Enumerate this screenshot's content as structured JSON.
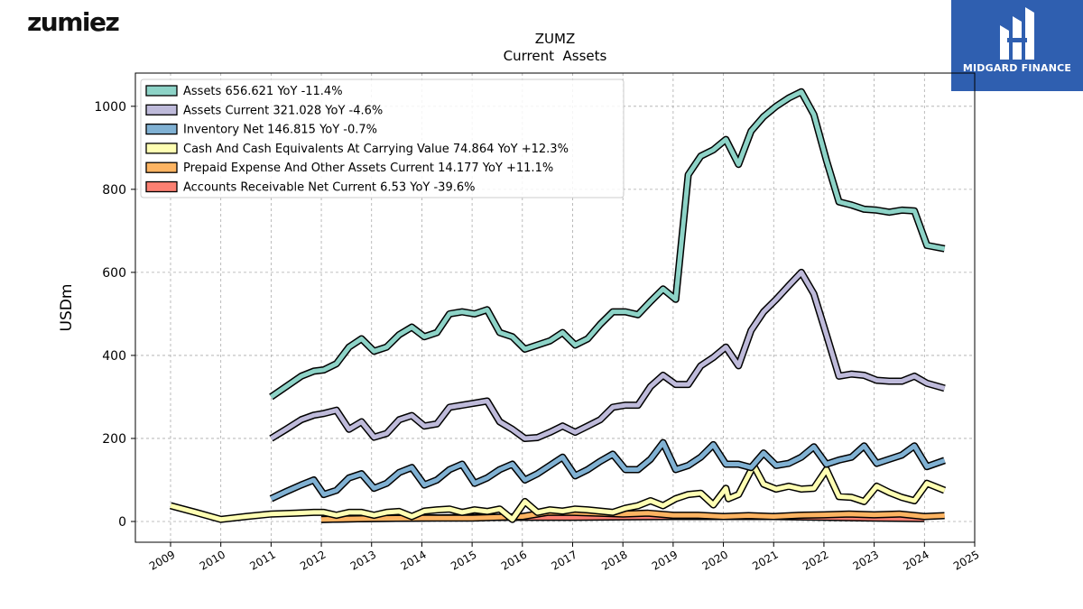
{
  "brand": {
    "name": "zumiez",
    "badge_text": "MIDGARD FINANCE"
  },
  "chart_data": {
    "type": "line",
    "title": "ZUMZ",
    "subtitle": "Current  Assets",
    "xlabel": "",
    "ylabel": "USDm",
    "xlim": [
      2008.3,
      2025.0
    ],
    "ylim": [
      -50,
      1080
    ],
    "grid": true,
    "legend_position": "top-left",
    "x_ticks": [
      "2009",
      "2010",
      "2011",
      "2012",
      "2013",
      "2014",
      "2015",
      "2016",
      "2017",
      "2018",
      "2019",
      "2020",
      "2021",
      "2022",
      "2023",
      "2024",
      "2025"
    ],
    "y_ticks": [
      "0",
      "200",
      "400",
      "600",
      "800",
      "1000"
    ],
    "series": [
      {
        "name": "Assets",
        "legend_label": "Assets  656.621 YoY -11.4%",
        "color": "#8dd3c7",
        "points": [
          [
            2011.0,
            300
          ],
          [
            2011.3,
            325
          ],
          [
            2011.6,
            350
          ],
          [
            2011.85,
            362
          ],
          [
            2012.05,
            365
          ],
          [
            2012.3,
            380
          ],
          [
            2012.55,
            420
          ],
          [
            2012.8,
            440
          ],
          [
            2013.05,
            410
          ],
          [
            2013.3,
            420
          ],
          [
            2013.55,
            450
          ],
          [
            2013.8,
            468
          ],
          [
            2014.05,
            445
          ],
          [
            2014.3,
            455
          ],
          [
            2014.55,
            500
          ],
          [
            2014.8,
            505
          ],
          [
            2015.05,
            500
          ],
          [
            2015.3,
            510
          ],
          [
            2015.55,
            455
          ],
          [
            2015.8,
            445
          ],
          [
            2016.05,
            415
          ],
          [
            2016.3,
            425
          ],
          [
            2016.55,
            435
          ],
          [
            2016.8,
            455
          ],
          [
            2017.05,
            425
          ],
          [
            2017.3,
            440
          ],
          [
            2017.55,
            475
          ],
          [
            2017.8,
            505
          ],
          [
            2018.05,
            505
          ],
          [
            2018.3,
            498
          ],
          [
            2018.55,
            530
          ],
          [
            2018.8,
            560
          ],
          [
            2019.05,
            535
          ],
          [
            2019.3,
            835
          ],
          [
            2019.55,
            880
          ],
          [
            2019.8,
            895
          ],
          [
            2020.05,
            920
          ],
          [
            2020.3,
            860
          ],
          [
            2020.55,
            940
          ],
          [
            2020.8,
            975
          ],
          [
            2021.05,
            1000
          ],
          [
            2021.3,
            1020
          ],
          [
            2021.55,
            1035
          ],
          [
            2021.8,
            980
          ],
          [
            2022.05,
            870
          ],
          [
            2022.3,
            770
          ],
          [
            2022.55,
            762
          ],
          [
            2022.8,
            752
          ],
          [
            2023.05,
            750
          ],
          [
            2023.3,
            745
          ],
          [
            2023.55,
            750
          ],
          [
            2023.8,
            748
          ],
          [
            2024.05,
            665
          ],
          [
            2024.4,
            657
          ]
        ]
      },
      {
        "name": "Assets Current",
        "legend_label": "Assets Current  321.028 YoY -4.6%",
        "color": "#bebada",
        "points": [
          [
            2011.0,
            200
          ],
          [
            2011.3,
            222
          ],
          [
            2011.6,
            245
          ],
          [
            2011.85,
            256
          ],
          [
            2012.05,
            260
          ],
          [
            2012.3,
            268
          ],
          [
            2012.55,
            222
          ],
          [
            2012.8,
            240
          ],
          [
            2013.05,
            203
          ],
          [
            2013.3,
            212
          ],
          [
            2013.55,
            245
          ],
          [
            2013.8,
            255
          ],
          [
            2014.05,
            230
          ],
          [
            2014.3,
            235
          ],
          [
            2014.55,
            275
          ],
          [
            2014.8,
            280
          ],
          [
            2015.05,
            285
          ],
          [
            2015.3,
            290
          ],
          [
            2015.55,
            240
          ],
          [
            2015.8,
            222
          ],
          [
            2016.05,
            200
          ],
          [
            2016.3,
            202
          ],
          [
            2016.55,
            215
          ],
          [
            2016.8,
            230
          ],
          [
            2017.05,
            215
          ],
          [
            2017.3,
            230
          ],
          [
            2017.55,
            245
          ],
          [
            2017.8,
            275
          ],
          [
            2018.05,
            280
          ],
          [
            2018.3,
            280
          ],
          [
            2018.55,
            325
          ],
          [
            2018.8,
            352
          ],
          [
            2019.05,
            330
          ],
          [
            2019.3,
            330
          ],
          [
            2019.55,
            375
          ],
          [
            2019.8,
            395
          ],
          [
            2020.05,
            420
          ],
          [
            2020.3,
            375
          ],
          [
            2020.55,
            460
          ],
          [
            2020.8,
            505
          ],
          [
            2021.05,
            535
          ],
          [
            2021.3,
            568
          ],
          [
            2021.55,
            600
          ],
          [
            2021.8,
            548
          ],
          [
            2022.05,
            450
          ],
          [
            2022.3,
            350
          ],
          [
            2022.55,
            355
          ],
          [
            2022.8,
            352
          ],
          [
            2023.05,
            340
          ],
          [
            2023.3,
            338
          ],
          [
            2023.55,
            338
          ],
          [
            2023.8,
            350
          ],
          [
            2024.05,
            333
          ],
          [
            2024.4,
            321
          ]
        ]
      },
      {
        "name": "Inventory Net",
        "legend_label": "Inventory Net  146.815 YoY -0.7%",
        "color": "#80b1d3",
        "points": [
          [
            2011.0,
            55
          ],
          [
            2011.3,
            72
          ],
          [
            2011.6,
            88
          ],
          [
            2011.85,
            100
          ],
          [
            2012.05,
            65
          ],
          [
            2012.3,
            75
          ],
          [
            2012.55,
            105
          ],
          [
            2012.8,
            115
          ],
          [
            2013.05,
            80
          ],
          [
            2013.3,
            92
          ],
          [
            2013.55,
            118
          ],
          [
            2013.8,
            130
          ],
          [
            2014.05,
            88
          ],
          [
            2014.3,
            100
          ],
          [
            2014.55,
            125
          ],
          [
            2014.8,
            138
          ],
          [
            2015.05,
            92
          ],
          [
            2015.3,
            105
          ],
          [
            2015.55,
            125
          ],
          [
            2015.8,
            138
          ],
          [
            2016.05,
            100
          ],
          [
            2016.3,
            115
          ],
          [
            2016.55,
            135
          ],
          [
            2016.8,
            155
          ],
          [
            2017.05,
            110
          ],
          [
            2017.3,
            125
          ],
          [
            2017.55,
            145
          ],
          [
            2017.8,
            162
          ],
          [
            2018.05,
            125
          ],
          [
            2018.3,
            125
          ],
          [
            2018.55,
            150
          ],
          [
            2018.8,
            190
          ],
          [
            2019.05,
            125
          ],
          [
            2019.3,
            135
          ],
          [
            2019.55,
            155
          ],
          [
            2019.8,
            185
          ],
          [
            2020.05,
            138
          ],
          [
            2020.3,
            138
          ],
          [
            2020.55,
            130
          ],
          [
            2020.8,
            165
          ],
          [
            2021.05,
            135
          ],
          [
            2021.3,
            140
          ],
          [
            2021.55,
            155
          ],
          [
            2021.8,
            180
          ],
          [
            2022.05,
            138
          ],
          [
            2022.3,
            148
          ],
          [
            2022.55,
            155
          ],
          [
            2022.8,
            182
          ],
          [
            2023.05,
            140
          ],
          [
            2023.3,
            150
          ],
          [
            2023.55,
            160
          ],
          [
            2023.8,
            182
          ],
          [
            2024.05,
            132
          ],
          [
            2024.4,
            147
          ]
        ]
      },
      {
        "name": "Cash And Cash Equivalents At Carrying Value",
        "legend_label": "Cash And Cash Equivalents At Carrying Value  74.864 YoY +12.3%",
        "color": "#ffffb3",
        "points": [
          [
            2009.0,
            38
          ],
          [
            2009.5,
            22
          ],
          [
            2010.0,
            5
          ],
          [
            2010.5,
            12
          ],
          [
            2011.0,
            18
          ],
          [
            2011.5,
            20
          ],
          [
            2011.85,
            22
          ],
          [
            2012.05,
            22
          ],
          [
            2012.3,
            15
          ],
          [
            2012.55,
            22
          ],
          [
            2012.8,
            22
          ],
          [
            2013.05,
            15
          ],
          [
            2013.3,
            22
          ],
          [
            2013.55,
            24
          ],
          [
            2013.8,
            12
          ],
          [
            2014.05,
            25
          ],
          [
            2014.3,
            28
          ],
          [
            2014.55,
            30
          ],
          [
            2014.8,
            22
          ],
          [
            2015.05,
            28
          ],
          [
            2015.3,
            24
          ],
          [
            2015.55,
            30
          ],
          [
            2015.8,
            5
          ],
          [
            2016.05,
            48
          ],
          [
            2016.3,
            22
          ],
          [
            2016.55,
            28
          ],
          [
            2016.8,
            25
          ],
          [
            2017.05,
            30
          ],
          [
            2017.3,
            28
          ],
          [
            2017.55,
            25
          ],
          [
            2017.8,
            22
          ],
          [
            2018.05,
            32
          ],
          [
            2018.3,
            38
          ],
          [
            2018.55,
            50
          ],
          [
            2018.8,
            38
          ],
          [
            2019.05,
            55
          ],
          [
            2019.3,
            65
          ],
          [
            2019.55,
            68
          ],
          [
            2019.8,
            40
          ],
          [
            2020.05,
            80
          ],
          [
            2020.1,
            55
          ],
          [
            2020.3,
            65
          ],
          [
            2020.6,
            135
          ],
          [
            2020.8,
            90
          ],
          [
            2021.05,
            78
          ],
          [
            2021.3,
            85
          ],
          [
            2021.55,
            78
          ],
          [
            2021.8,
            80
          ],
          [
            2022.05,
            125
          ],
          [
            2022.3,
            60
          ],
          [
            2022.55,
            58
          ],
          [
            2022.8,
            48
          ],
          [
            2023.05,
            85
          ],
          [
            2023.3,
            70
          ],
          [
            2023.55,
            58
          ],
          [
            2023.8,
            50
          ],
          [
            2024.05,
            92
          ],
          [
            2024.4,
            75
          ]
        ]
      },
      {
        "name": "Prepaid Expense And Other Assets Current",
        "legend_label": "Prepaid Expense And Other Assets Current  14.177 YoY +11.1%",
        "color": "#fdb462",
        "points": [
          [
            2012.0,
            5
          ],
          [
            2013.0,
            7
          ],
          [
            2014.0,
            8
          ],
          [
            2015.0,
            8
          ],
          [
            2016.0,
            12
          ],
          [
            2016.5,
            22
          ],
          [
            2017.0,
            22
          ],
          [
            2017.5,
            20
          ],
          [
            2018.0,
            18
          ],
          [
            2018.5,
            20
          ],
          [
            2019.0,
            15
          ],
          [
            2019.5,
            15
          ],
          [
            2020.0,
            12
          ],
          [
            2020.5,
            14
          ],
          [
            2021.0,
            12
          ],
          [
            2021.5,
            15
          ],
          [
            2022.0,
            16
          ],
          [
            2022.5,
            18
          ],
          [
            2023.0,
            16
          ],
          [
            2023.5,
            18
          ],
          [
            2024.0,
            12
          ],
          [
            2024.4,
            14
          ]
        ]
      },
      {
        "name": "Accounts Receivable Net Current",
        "legend_label": "Accounts Receivable Net Current  6.53 YoY -39.6%",
        "color": "#fb8072",
        "points": [
          [
            2012.0,
            5
          ],
          [
            2013.0,
            7
          ],
          [
            2014.0,
            8
          ],
          [
            2015.0,
            10
          ],
          [
            2016.0,
            10
          ],
          [
            2017.0,
            10
          ],
          [
            2018.0,
            11
          ],
          [
            2019.0,
            12
          ],
          [
            2020.0,
            12
          ],
          [
            2021.0,
            12
          ],
          [
            2022.0,
            10
          ],
          [
            2023.0,
            8
          ],
          [
            2024.0,
            7
          ]
        ]
      }
    ]
  }
}
